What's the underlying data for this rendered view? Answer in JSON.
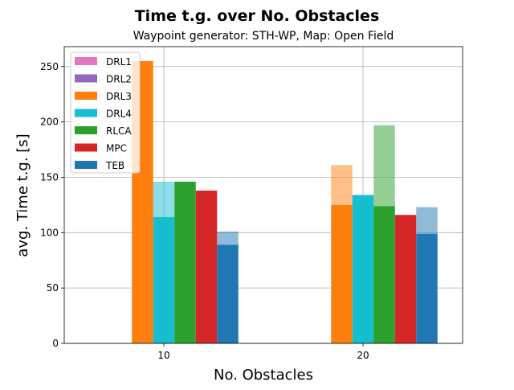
{
  "chart_data": {
    "type": "bar",
    "title": "Time t.g. over No. Obstacles",
    "subtitle": "Waypoint generator: STH-WP, Map: Open Field",
    "xlabel": "No. Obstacles",
    "ylabel": "avg. Time t.g. [s]",
    "categories": [
      "10",
      "20"
    ],
    "ylim": [
      0,
      268
    ],
    "yticks": [
      "0",
      "50",
      "100",
      "150",
      "200",
      "250"
    ],
    "grid": true,
    "legend_position": "top-left",
    "series": [
      {
        "name": "DRL1",
        "color": "#e377c2",
        "values": [
          null,
          null
        ],
        "upper": [
          null,
          null
        ]
      },
      {
        "name": "DRL2",
        "color": "#9467bd",
        "values": [
          null,
          null
        ],
        "upper": [
          null,
          null
        ]
      },
      {
        "name": "DRL3",
        "color": "#ff7f0e",
        "values": [
          255,
          125
        ],
        "upper": [
          255,
          161
        ]
      },
      {
        "name": "DRL4",
        "color": "#17becf",
        "values": [
          114,
          134
        ],
        "upper": [
          146,
          134
        ]
      },
      {
        "name": "RLCA",
        "color": "#2ca02c",
        "values": [
          146,
          124
        ],
        "upper": [
          146,
          197
        ]
      },
      {
        "name": "MPC",
        "color": "#d62728",
        "values": [
          138,
          116
        ],
        "upper": [
          138,
          116
        ]
      },
      {
        "name": "TEB",
        "color": "#1f77b4",
        "values": [
          89,
          99
        ],
        "upper": [
          101,
          123
        ]
      }
    ]
  }
}
